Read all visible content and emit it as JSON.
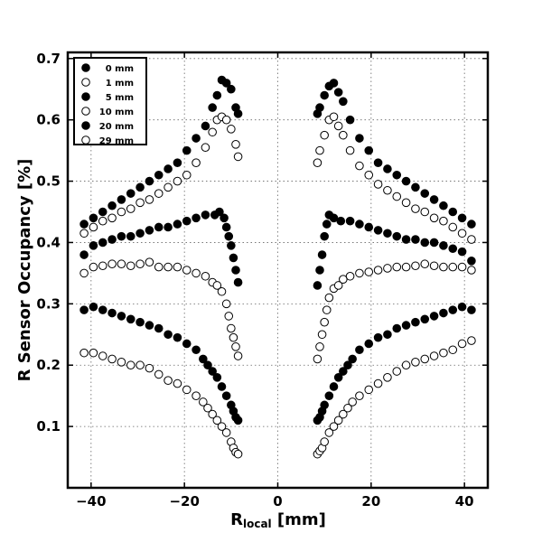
{
  "chart_data": {
    "type": "scatter",
    "title": "",
    "xlabel_main": "R",
    "xlabel_sub": "local",
    "xlabel_unit": " [mm]",
    "ylabel": "R Sensor Occupancy [%]",
    "xlim": [
      -45,
      45
    ],
    "ylim": [
      0.0,
      0.71
    ],
    "xticks": [
      -40,
      -20,
      0,
      20,
      40
    ],
    "xtick_labels": [
      "−40",
      "−20",
      "0",
      "20",
      "40"
    ],
    "yticks": [
      0.1,
      0.2,
      0.3,
      0.4,
      0.5,
      0.6,
      0.7
    ],
    "ytick_labels": [
      "0.1",
      "0.2",
      "0.3",
      "0.4",
      "0.5",
      "0.6",
      "0.7"
    ],
    "grid": true,
    "legend_position": "top-left",
    "series": [
      {
        "name": "0 mm",
        "filled": true,
        "x": [
          -41.5,
          -39.5,
          -37.5,
          -35.5,
          -33.5,
          -31.5,
          -29.5,
          -27.5,
          -25.5,
          -23.5,
          -21.5,
          -19.5,
          -17.5,
          -15.5,
          -14,
          -13,
          -12,
          -11,
          -10,
          -9,
          -8.5,
          8.5,
          9,
          10,
          11,
          12,
          13,
          14,
          15.5,
          17.5,
          19.5,
          21.5,
          23.5,
          25.5,
          27.5,
          29.5,
          31.5,
          33.5,
          35.5,
          37.5,
          39.5,
          41.5
        ],
        "y": [
          0.43,
          0.44,
          0.45,
          0.46,
          0.47,
          0.48,
          0.49,
          0.5,
          0.51,
          0.52,
          0.53,
          0.55,
          0.57,
          0.59,
          0.62,
          0.64,
          0.665,
          0.66,
          0.65,
          0.62,
          0.61,
          0.61,
          0.62,
          0.64,
          0.655,
          0.66,
          0.645,
          0.63,
          0.6,
          0.57,
          0.55,
          0.53,
          0.52,
          0.51,
          0.5,
          0.49,
          0.48,
          0.47,
          0.46,
          0.45,
          0.44,
          0.43
        ]
      },
      {
        "name": "1 mm",
        "filled": false,
        "x": [
          -41.5,
          -39.5,
          -37.5,
          -35.5,
          -33.5,
          -31.5,
          -29.5,
          -27.5,
          -25.5,
          -23.5,
          -21.5,
          -19.5,
          -17.5,
          -15.5,
          -14,
          -13,
          -12,
          -11,
          -10,
          -9,
          -8.5,
          8.5,
          9,
          10,
          11,
          12,
          13,
          14,
          15.5,
          17.5,
          19.5,
          21.5,
          23.5,
          25.5,
          27.5,
          29.5,
          31.5,
          33.5,
          35.5,
          37.5,
          39.5,
          41.5
        ],
        "y": [
          0.415,
          0.425,
          0.435,
          0.44,
          0.45,
          0.455,
          0.465,
          0.47,
          0.48,
          0.49,
          0.5,
          0.51,
          0.53,
          0.555,
          0.58,
          0.6,
          0.605,
          0.6,
          0.585,
          0.56,
          0.54,
          0.53,
          0.55,
          0.575,
          0.6,
          0.605,
          0.59,
          0.575,
          0.55,
          0.525,
          0.51,
          0.495,
          0.485,
          0.475,
          0.465,
          0.455,
          0.45,
          0.44,
          0.435,
          0.425,
          0.415,
          0.405
        ]
      },
      {
        "name": "5 mm",
        "filled": true,
        "x": [
          -41.5,
          -39.5,
          -37.5,
          -35.5,
          -33.5,
          -31.5,
          -29.5,
          -27.5,
          -25.5,
          -23.5,
          -21.5,
          -19.5,
          -17.5,
          -15.5,
          -13.5,
          -12.5,
          -11.5,
          -11,
          -10.5,
          -10,
          -9.5,
          -9,
          -8.5,
          8.5,
          9,
          9.5,
          10,
          10.5,
          11,
          12,
          13.5,
          15.5,
          17.5,
          19.5,
          21.5,
          23.5,
          25.5,
          27.5,
          29.5,
          31.5,
          33.5,
          35.5,
          37.5,
          39.5,
          41.5
        ],
        "y": [
          0.38,
          0.395,
          0.4,
          0.405,
          0.41,
          0.41,
          0.415,
          0.42,
          0.425,
          0.425,
          0.43,
          0.435,
          0.44,
          0.445,
          0.445,
          0.45,
          0.44,
          0.425,
          0.41,
          0.395,
          0.375,
          0.355,
          0.335,
          0.33,
          0.355,
          0.38,
          0.41,
          0.43,
          0.445,
          0.44,
          0.435,
          0.435,
          0.43,
          0.425,
          0.42,
          0.415,
          0.41,
          0.405,
          0.405,
          0.4,
          0.4,
          0.395,
          0.39,
          0.385,
          0.37
        ]
      },
      {
        "name": "10 mm",
        "filled": false,
        "x": [
          -41.5,
          -39.5,
          -37.5,
          -35.5,
          -33.5,
          -31.5,
          -29.5,
          -27.5,
          -25.5,
          -23.5,
          -21.5,
          -19.5,
          -17.5,
          -15.5,
          -14,
          -13,
          -12,
          -11,
          -10.5,
          -10,
          -9.5,
          -9,
          -8.5,
          8.5,
          9,
          9.5,
          10,
          10.5,
          11,
          12,
          13,
          14,
          15.5,
          17.5,
          19.5,
          21.5,
          23.5,
          25.5,
          27.5,
          29.5,
          31.5,
          33.5,
          35.5,
          37.5,
          39.5,
          41.5
        ],
        "y": [
          0.35,
          0.36,
          0.362,
          0.365,
          0.365,
          0.362,
          0.365,
          0.368,
          0.36,
          0.36,
          0.36,
          0.355,
          0.35,
          0.345,
          0.335,
          0.33,
          0.32,
          0.3,
          0.28,
          0.26,
          0.245,
          0.23,
          0.215,
          0.21,
          0.23,
          0.25,
          0.27,
          0.29,
          0.31,
          0.325,
          0.33,
          0.34,
          0.345,
          0.35,
          0.352,
          0.355,
          0.358,
          0.36,
          0.36,
          0.362,
          0.365,
          0.362,
          0.36,
          0.36,
          0.36,
          0.355
        ]
      },
      {
        "name": "20 mm",
        "filled": true,
        "x": [
          -41.5,
          -39.5,
          -37.5,
          -35.5,
          -33.5,
          -31.5,
          -29.5,
          -27.5,
          -25.5,
          -23.5,
          -21.5,
          -19.5,
          -17.5,
          -16,
          -15,
          -14,
          -13,
          -12,
          -11,
          -10,
          -9.5,
          -9,
          -8.5,
          8.5,
          9,
          9.5,
          10,
          11,
          12,
          13,
          14,
          15,
          16,
          17.5,
          19.5,
          21.5,
          23.5,
          25.5,
          27.5,
          29.5,
          31.5,
          33.5,
          35.5,
          37.5,
          39.5,
          41.5
        ],
        "y": [
          0.29,
          0.295,
          0.29,
          0.285,
          0.28,
          0.275,
          0.27,
          0.265,
          0.26,
          0.25,
          0.245,
          0.235,
          0.225,
          0.21,
          0.2,
          0.19,
          0.18,
          0.165,
          0.15,
          0.135,
          0.125,
          0.115,
          0.11,
          0.11,
          0.115,
          0.125,
          0.135,
          0.15,
          0.165,
          0.18,
          0.19,
          0.2,
          0.21,
          0.225,
          0.235,
          0.245,
          0.25,
          0.26,
          0.265,
          0.27,
          0.275,
          0.28,
          0.285,
          0.29,
          0.295,
          0.29
        ]
      },
      {
        "name": "29 mm",
        "filled": false,
        "x": [
          -41.5,
          -39.5,
          -37.5,
          -35.5,
          -33.5,
          -31.5,
          -29.5,
          -27.5,
          -25.5,
          -23.5,
          -21.5,
          -19.5,
          -17.5,
          -16,
          -15,
          -14,
          -13,
          -12,
          -11,
          -10,
          -9.5,
          -9,
          -8.5,
          8.5,
          9,
          9.5,
          10,
          11,
          12,
          13,
          14,
          15,
          16,
          17.5,
          19.5,
          21.5,
          23.5,
          25.5,
          27.5,
          29.5,
          31.5,
          33.5,
          35.5,
          37.5,
          39.5,
          41.5
        ],
        "y": [
          0.22,
          0.22,
          0.215,
          0.21,
          0.205,
          0.2,
          0.2,
          0.195,
          0.185,
          0.175,
          0.17,
          0.16,
          0.15,
          0.14,
          0.13,
          0.12,
          0.11,
          0.1,
          0.09,
          0.075,
          0.065,
          0.058,
          0.055,
          0.055,
          0.06,
          0.065,
          0.075,
          0.09,
          0.1,
          0.11,
          0.12,
          0.13,
          0.14,
          0.15,
          0.16,
          0.17,
          0.18,
          0.19,
          0.2,
          0.205,
          0.21,
          0.215,
          0.22,
          0.225,
          0.235,
          0.24
        ]
      }
    ]
  }
}
